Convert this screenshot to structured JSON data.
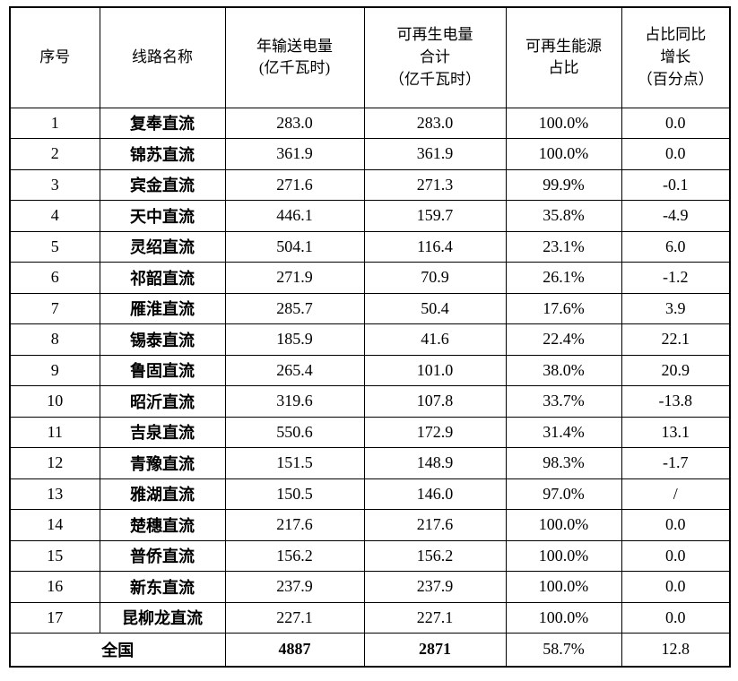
{
  "chart_data": {
    "type": "table",
    "title": "",
    "columns": [
      "序号",
      "线路名称",
      "年输送电量\n(亿千瓦时)",
      "可再生电量\n合计\n（亿千瓦时）",
      "可再生能源\n占比",
      "占比同比\n增长\n（百分点）"
    ],
    "rows": [
      [
        "1",
        "复奉直流",
        "283.0",
        "283.0",
        "100.0%",
        "0.0"
      ],
      [
        "2",
        "锦苏直流",
        "361.9",
        "361.9",
        "100.0%",
        "0.0"
      ],
      [
        "3",
        "宾金直流",
        "271.6",
        "271.3",
        "99.9%",
        "-0.1"
      ],
      [
        "4",
        "天中直流",
        "446.1",
        "159.7",
        "35.8%",
        "-4.9"
      ],
      [
        "5",
        "灵绍直流",
        "504.1",
        "116.4",
        "23.1%",
        "6.0"
      ],
      [
        "6",
        "祁韶直流",
        "271.9",
        "70.9",
        "26.1%",
        "-1.2"
      ],
      [
        "7",
        "雁淮直流",
        "285.7",
        "50.4",
        "17.6%",
        "3.9"
      ],
      [
        "8",
        "锡泰直流",
        "185.9",
        "41.6",
        "22.4%",
        "22.1"
      ],
      [
        "9",
        "鲁固直流",
        "265.4",
        "101.0",
        "38.0%",
        "20.9"
      ],
      [
        "10",
        "昭沂直流",
        "319.6",
        "107.8",
        "33.7%",
        "-13.8"
      ],
      [
        "11",
        "吉泉直流",
        "550.6",
        "172.9",
        "31.4%",
        "13.1"
      ],
      [
        "12",
        "青豫直流",
        "151.5",
        "148.9",
        "98.3%",
        "-1.7"
      ],
      [
        "13",
        "雅湖直流",
        "150.5",
        "146.0",
        "97.0%",
        "/"
      ],
      [
        "14",
        "楚穗直流",
        "217.6",
        "217.6",
        "100.0%",
        "0.0"
      ],
      [
        "15",
        "普侨直流",
        "156.2",
        "156.2",
        "100.0%",
        "0.0"
      ],
      [
        "16",
        "新东直流",
        "237.9",
        "237.9",
        "100.0%",
        "0.0"
      ],
      [
        "17",
        "昆柳龙直流",
        "227.1",
        "227.1",
        "100.0%",
        "0.0"
      ]
    ],
    "total_row": [
      "全国",
      "4887",
      "2871",
      "58.7%",
      "12.8"
    ]
  }
}
